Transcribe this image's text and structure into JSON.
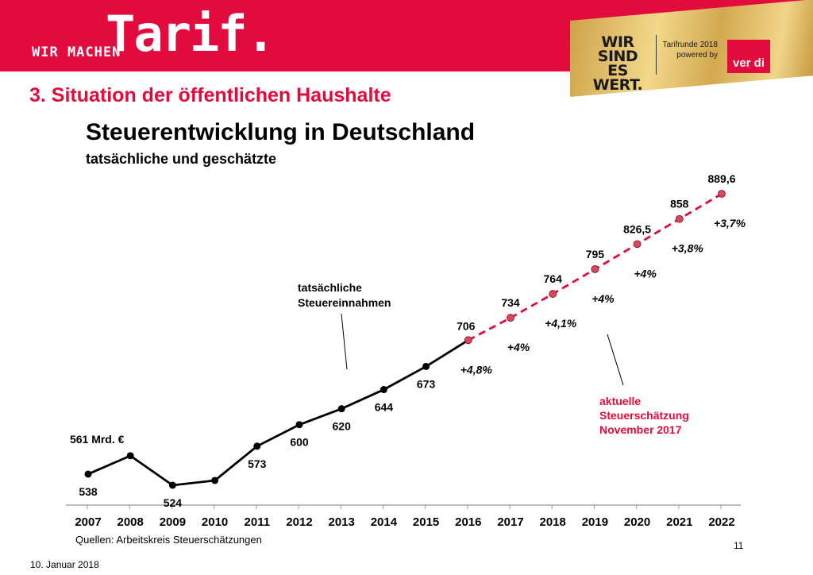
{
  "header": {
    "brand_small": "WIR MACHEN",
    "brand_big": "Tarif.",
    "campaign_lines": [
      "WIR",
      "SIND ES",
      "WERT."
    ],
    "tarifrunde_lines": [
      "Tarifrunde 2018",
      "powered by"
    ],
    "verdi_logo": "ver di"
  },
  "section_title": "3. Situation der öffentlichen Haushalte",
  "footer": {
    "source": "Quellen: Arbeitskreis Steuerschätzungen",
    "page_number": "11",
    "date": "10. Januar 2018"
  },
  "colors": {
    "brand_red": "#e30b3e",
    "actual_line": "#000000",
    "forecast_line": "#e30b3e"
  },
  "chart_data": {
    "type": "line",
    "title": "Steuerentwicklung in Deutschland",
    "subtitle": "tatsächliche und geschätzte",
    "categories": [
      "2007",
      "2008",
      "2009",
      "2010",
      "2011",
      "2012",
      "2013",
      "2014",
      "2015",
      "2016",
      "2017",
      "2018",
      "2019",
      "2020",
      "2021",
      "2022"
    ],
    "series": [
      {
        "kind": "actual",
        "x": [
          "2007",
          "2008",
          "2009",
          "2010",
          "2011",
          "2012",
          "2013",
          "2014",
          "2015",
          "2016"
        ],
        "values": [
          538,
          561,
          524,
          530,
          573,
          600,
          620,
          644,
          673,
          706
        ]
      },
      {
        "kind": "forecast",
        "x": [
          "2016",
          "2017",
          "2018",
          "2019",
          "2020",
          "2021",
          "2022"
        ],
        "values": [
          706,
          734,
          764,
          795,
          826.5,
          858,
          889.6
        ]
      }
    ],
    "ylim": [
      510,
      900
    ],
    "value_labels": [
      {
        "year": "2007",
        "text": "538"
      },
      {
        "year": "2008",
        "text": "561 Mrd. €"
      },
      {
        "year": "2009",
        "text": "524"
      },
      {
        "year": "2011",
        "text": "573"
      },
      {
        "year": "2012",
        "text": "600"
      },
      {
        "year": "2013",
        "text": "620"
      },
      {
        "year": "2014",
        "text": "644"
      },
      {
        "year": "2015",
        "text": "673"
      },
      {
        "year": "2016",
        "text": "706"
      },
      {
        "year": "2017",
        "text": "734"
      },
      {
        "year": "2018",
        "text": "764"
      },
      {
        "year": "2019",
        "text": "795"
      },
      {
        "year": "2020",
        "text": "826,5"
      },
      {
        "year": "2021",
        "text": "858"
      },
      {
        "year": "2022",
        "text": "889,6"
      }
    ],
    "growth_labels": [
      {
        "year": "2016",
        "text": "+4,8%"
      },
      {
        "year": "2017",
        "text": "+4%"
      },
      {
        "year": "2018",
        "text": "+4,1%"
      },
      {
        "year": "2019",
        "text": "+4%"
      },
      {
        "year": "2020",
        "text": "+4%"
      },
      {
        "year": "2021",
        "text": "+3,8%"
      },
      {
        "year": "2022",
        "text": "+3,7%"
      }
    ],
    "annotations": {
      "actual": [
        "tatsächliche",
        "Steuereinnahmen"
      ],
      "forecast": [
        "aktuelle",
        "Steuerschätzung",
        "November 2017"
      ]
    },
    "grid": false
  }
}
